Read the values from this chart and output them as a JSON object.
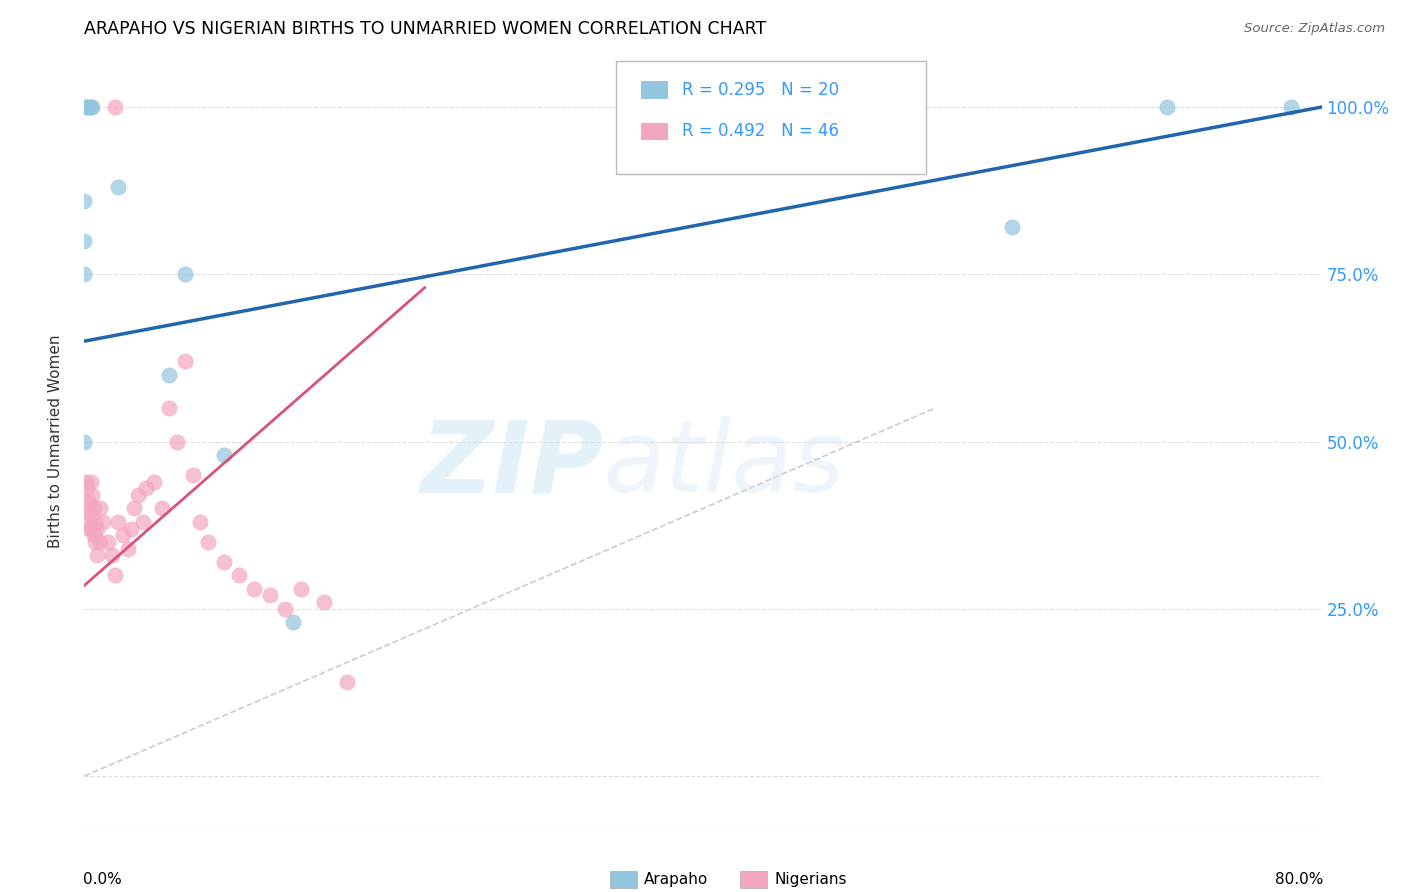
{
  "title": "ARAPAHO VS NIGERIAN BIRTHS TO UNMARRIED WOMEN CORRELATION CHART",
  "source": "Source: ZipAtlas.com",
  "ylabel": "Births to Unmarried Women",
  "watermark_zip": "ZIP",
  "watermark_atlas": "atlas",
  "xlim": [
    0.0,
    0.8
  ],
  "ylim": [
    -0.08,
    1.08
  ],
  "yticks": [
    0.0,
    0.25,
    0.5,
    0.75,
    1.0
  ],
  "ytick_labels": [
    "",
    "25.0%",
    "50.0%",
    "75.0%",
    "100.0%"
  ],
  "arapaho_color": "#92c5de",
  "nigerian_color": "#f4a6c0",
  "arapaho_line_color": "#2166ac",
  "nigerian_line_color": "#d6537a",
  "diag_line_color": "#cccccc",
  "scatter_alpha": 0.7,
  "scatter_size": 120,
  "arapaho_x": [
    0.001,
    0.002,
    0.003,
    0.004,
    0.005,
    0.022,
    0.065,
    0.6,
    0.7,
    0.78,
    0.0,
    0.0,
    0.0,
    0.0,
    0.055,
    0.09,
    0.135
  ],
  "arapaho_y": [
    1.0,
    1.0,
    1.0,
    1.0,
    1.0,
    0.88,
    0.75,
    0.82,
    1.0,
    1.0,
    0.86,
    0.8,
    0.75,
    0.5,
    0.6,
    0.48,
    0.23
  ],
  "nigerian_x": [
    0.001,
    0.001,
    0.002,
    0.002,
    0.003,
    0.003,
    0.004,
    0.004,
    0.005,
    0.005,
    0.006,
    0.006,
    0.007,
    0.007,
    0.008,
    0.008,
    0.01,
    0.01,
    0.012,
    0.015,
    0.018,
    0.02,
    0.022,
    0.025,
    0.028,
    0.03,
    0.032,
    0.035,
    0.038,
    0.04,
    0.045,
    0.05,
    0.055,
    0.06,
    0.065,
    0.07,
    0.075,
    0.08,
    0.09,
    0.1,
    0.11,
    0.12,
    0.13,
    0.14,
    0.155,
    0.17,
    0.02
  ],
  "nigerian_y": [
    0.44,
    0.4,
    0.43,
    0.38,
    0.41,
    0.37,
    0.44,
    0.39,
    0.42,
    0.37,
    0.4,
    0.36,
    0.38,
    0.35,
    0.37,
    0.33,
    0.4,
    0.35,
    0.38,
    0.35,
    0.33,
    0.3,
    0.38,
    0.36,
    0.34,
    0.37,
    0.4,
    0.42,
    0.38,
    0.43,
    0.44,
    0.4,
    0.55,
    0.5,
    0.62,
    0.45,
    0.38,
    0.35,
    0.32,
    0.3,
    0.28,
    0.27,
    0.25,
    0.28,
    0.26,
    0.14,
    1.0
  ],
  "arapaho_trend_x": [
    0.0,
    0.8
  ],
  "arapaho_trend_y": [
    0.65,
    1.0
  ],
  "nigerian_trend_x": [
    0.0,
    0.22
  ],
  "nigerian_trend_y": [
    0.285,
    0.73
  ],
  "diag_trend_x": [
    0.0,
    0.55
  ],
  "diag_trend_y": [
    0.0,
    0.55
  ]
}
